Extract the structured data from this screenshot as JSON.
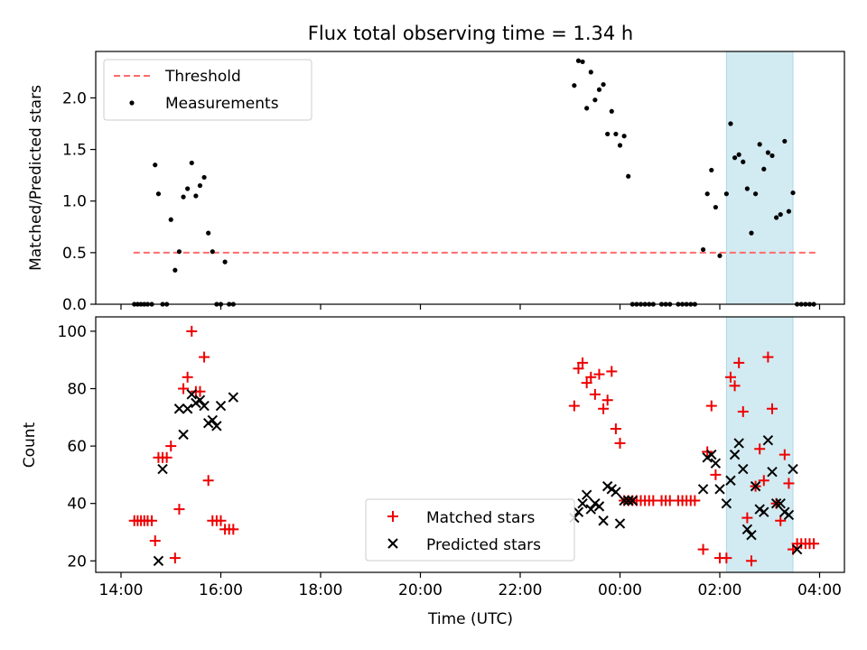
{
  "title": "Flux total observing time = 1.34 h",
  "colors": {
    "measurement": "#000000",
    "threshold": "#ff6b6b",
    "matched": "#ee0000",
    "predicted": "#000000",
    "highlight": "#add8e6"
  },
  "highlight_span": [
    "02:08",
    "03:28"
  ],
  "chart_data": [
    {
      "type": "scatter",
      "name": "top",
      "ylabel": "Matched/Predicted stars",
      "xlabel": "",
      "ylim": [
        0,
        2.45
      ],
      "yticks": [
        "0.0",
        "0.5",
        "1.0",
        "1.5",
        "2.0"
      ],
      "ytick_values": [
        0,
        0.5,
        1.0,
        1.5,
        2.0
      ],
      "grid": false,
      "legend": {
        "placement": "top-left",
        "entries": [
          "Threshold",
          "Measurements"
        ]
      },
      "threshold": {
        "name": "Threshold",
        "value": 0.5,
        "x_range": [
          "14:15",
          "03:55"
        ]
      },
      "series": [
        {
          "name": "Measurements",
          "x": [
            "14:16",
            "14:20",
            "14:24",
            "14:28",
            "14:32",
            "14:37",
            "14:41",
            "14:45",
            "14:50",
            "14:55",
            "15:00",
            "15:05",
            "15:10",
            "15:15",
            "15:20",
            "15:25",
            "15:30",
            "15:35",
            "15:40",
            "15:45",
            "15:50",
            "15:55",
            "16:00",
            "16:05",
            "16:10",
            "16:15",
            "23:05",
            "23:10",
            "23:15",
            "23:20",
            "23:25",
            "23:30",
            "23:35",
            "23:40",
            "23:45",
            "23:50",
            "23:55",
            "00:00",
            "00:05",
            "00:10",
            "00:15",
            "00:20",
            "00:25",
            "00:30",
            "00:35",
            "00:40",
            "00:50",
            "00:55",
            "01:00",
            "01:10",
            "01:15",
            "01:20",
            "01:25",
            "01:30",
            "01:40",
            "01:45",
            "01:50",
            "01:55",
            "02:00",
            "02:08",
            "02:13",
            "02:18",
            "02:23",
            "02:28",
            "02:33",
            "02:38",
            "02:43",
            "02:48",
            "02:53",
            "02:58",
            "03:03",
            "03:08",
            "03:13",
            "03:18",
            "03:23",
            "03:28",
            "03:33",
            "03:38",
            "03:43",
            "03:48",
            "03:53"
          ],
          "y": [
            0,
            0,
            0,
            0,
            0,
            0,
            1.35,
            1.07,
            0,
            0,
            0.82,
            0.33,
            0.51,
            1.04,
            1.12,
            1.37,
            1.05,
            1.15,
            1.23,
            0.69,
            0.51,
            0,
            0,
            0.41,
            0,
            0,
            2.12,
            2.36,
            2.35,
            1.9,
            2.25,
            1.98,
            2.08,
            2.13,
            1.65,
            1.87,
            1.65,
            1.54,
            1.63,
            1.24,
            0,
            0,
            0,
            0,
            0,
            0,
            0,
            0,
            0,
            0,
            0,
            0,
            0,
            0,
            0.53,
            1.07,
            1.3,
            0.94,
            0.47,
            1.07,
            1.75,
            1.42,
            1.45,
            1.38,
            1.12,
            0.69,
            1.07,
            1.55,
            1.31,
            1.47,
            1.44,
            0.84,
            0.87,
            1.58,
            0.9,
            1.08,
            0,
            0,
            0,
            0,
            0
          ]
        }
      ]
    },
    {
      "type": "scatter",
      "name": "bottom",
      "ylabel": "Count",
      "xlabel": "Time (UTC)",
      "ylim": [
        16,
        105
      ],
      "yticks": [
        "20",
        "40",
        "60",
        "80",
        "100"
      ],
      "ytick_values": [
        20,
        40,
        60,
        80,
        100
      ],
      "xticks": [
        "14:00",
        "16:00",
        "18:00",
        "20:00",
        "22:00",
        "00:00",
        "02:00",
        "04:00"
      ],
      "grid": false,
      "legend": {
        "placement": "lower-center",
        "entries": [
          "Matched stars",
          "Predicted stars"
        ]
      },
      "series": [
        {
          "name": "Matched stars",
          "marker": "plus",
          "x": [
            "14:16",
            "14:20",
            "14:24",
            "14:28",
            "14:32",
            "14:37",
            "14:41",
            "14:45",
            "14:50",
            "14:55",
            "15:00",
            "15:05",
            "15:10",
            "15:15",
            "15:20",
            "15:25",
            "15:30",
            "15:35",
            "15:40",
            "15:45",
            "15:50",
            "15:55",
            "16:00",
            "16:05",
            "16:10",
            "16:15",
            "23:05",
            "23:10",
            "23:15",
            "23:20",
            "23:25",
            "23:30",
            "23:35",
            "23:40",
            "23:45",
            "23:50",
            "23:55",
            "00:00",
            "00:05",
            "00:10",
            "00:15",
            "00:20",
            "00:25",
            "00:30",
            "00:35",
            "00:40",
            "00:50",
            "00:55",
            "01:00",
            "01:10",
            "01:15",
            "01:20",
            "01:25",
            "01:30",
            "01:40",
            "01:45",
            "01:50",
            "01:55",
            "02:00",
            "02:08",
            "02:13",
            "02:18",
            "02:23",
            "02:28",
            "02:33",
            "02:38",
            "02:43",
            "02:48",
            "02:53",
            "02:58",
            "03:03",
            "03:08",
            "03:13",
            "03:18",
            "03:23",
            "03:28",
            "03:33",
            "03:38",
            "03:43",
            "03:48",
            "03:53"
          ],
          "y": [
            34,
            34,
            34,
            34,
            34,
            34,
            27,
            56,
            56,
            56,
            60,
            21,
            38,
            80,
            84,
            100,
            79,
            79,
            91,
            48,
            34,
            34,
            34,
            31,
            31,
            31,
            74,
            87,
            89,
            82,
            84,
            78,
            85,
            73,
            76,
            86,
            66,
            61,
            41,
            41,
            41,
            41,
            41,
            41,
            41,
            41,
            41,
            41,
            41,
            41,
            41,
            41,
            41,
            41,
            24,
            58,
            74,
            50,
            21,
            21,
            84,
            81,
            89,
            72,
            35,
            20,
            46,
            59,
            48,
            91,
            73,
            40,
            34,
            57,
            47,
            24,
            26,
            26,
            26,
            26,
            26
          ]
        },
        {
          "name": "Predicted stars",
          "marker": "x",
          "x": [
            "14:45",
            "14:50",
            "15:10",
            "15:15",
            "15:20",
            "15:25",
            "15:30",
            "15:35",
            "15:40",
            "15:45",
            "15:50",
            "15:55",
            "16:00",
            "16:15",
            "23:05",
            "23:10",
            "23:15",
            "23:20",
            "23:25",
            "23:30",
            "23:35",
            "23:40",
            "23:45",
            "23:50",
            "23:55",
            "00:00",
            "00:05",
            "00:10",
            "00:15",
            "01:40",
            "01:45",
            "01:50",
            "01:55",
            "02:00",
            "02:08",
            "02:13",
            "02:18",
            "02:23",
            "02:28",
            "02:33",
            "02:38",
            "02:43",
            "02:48",
            "02:53",
            "02:58",
            "03:03",
            "03:08",
            "03:13",
            "03:18",
            "03:23",
            "03:28",
            "03:33"
          ],
          "y": [
            20,
            52,
            73,
            64,
            73,
            78,
            75,
            76,
            74,
            68,
            69,
            67,
            74,
            77,
            35,
            37,
            40,
            43,
            38,
            40,
            39,
            34,
            46,
            45,
            44,
            33,
            41,
            41,
            41,
            45,
            56,
            57,
            54,
            45,
            40,
            48,
            57,
            61,
            52,
            31,
            29,
            46,
            38,
            37,
            62,
            51,
            40,
            40,
            37,
            36,
            52,
            24
          ]
        }
      ]
    }
  ]
}
